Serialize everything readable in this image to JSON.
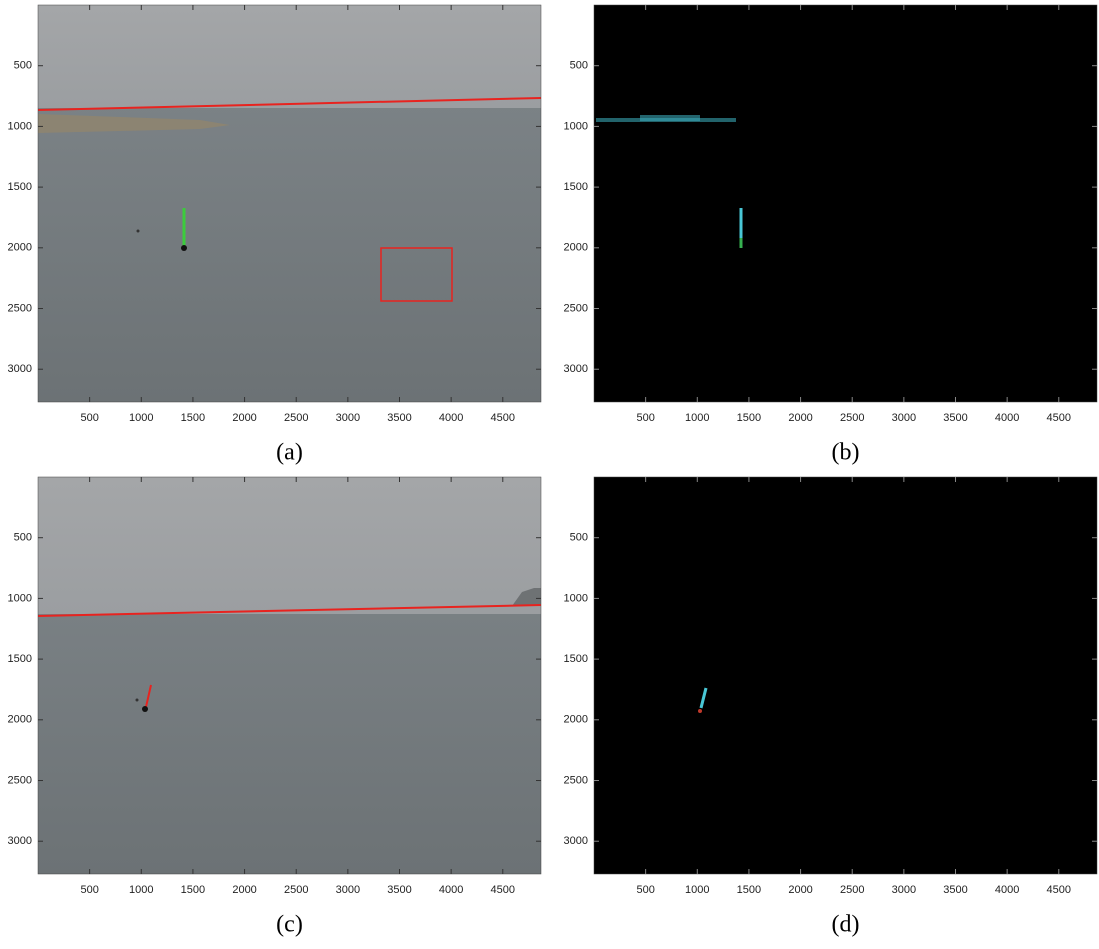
{
  "panels": [
    {
      "caption": "(a)",
      "xlim": [
        0,
        4870
      ],
      "ylim": [
        3270,
        0
      ],
      "xticks": [
        500,
        1000,
        1500,
        2000,
        2500,
        3000,
        3500,
        4000,
        4500
      ],
      "yticks": [
        500,
        1000,
        1500,
        2000,
        2500,
        3000
      ]
    },
    {
      "caption": "(b)",
      "xlim": [
        0,
        4870
      ],
      "ylim": [
        3270,
        0
      ],
      "xticks": [
        500,
        1000,
        1500,
        2000,
        2500,
        3000,
        3500,
        4000,
        4500
      ],
      "yticks": [
        500,
        1000,
        1500,
        2000,
        2500,
        3000
      ]
    },
    {
      "caption": "(c)",
      "xlim": [
        0,
        4870
      ],
      "ylim": [
        3270,
        0
      ],
      "xticks": [
        500,
        1000,
        1500,
        2000,
        2500,
        3000,
        3500,
        4000,
        4500
      ],
      "yticks": [
        500,
        1000,
        1500,
        2000,
        2500,
        3000
      ]
    },
    {
      "caption": "(d)",
      "xlim": [
        0,
        4870
      ],
      "ylim": [
        3270,
        0
      ],
      "xticks": [
        500,
        1000,
        1500,
        2000,
        2500,
        3000,
        3500,
        4000,
        4500
      ],
      "yticks": [
        500,
        1000,
        1500,
        2000,
        2500,
        3000
      ]
    }
  ]
}
